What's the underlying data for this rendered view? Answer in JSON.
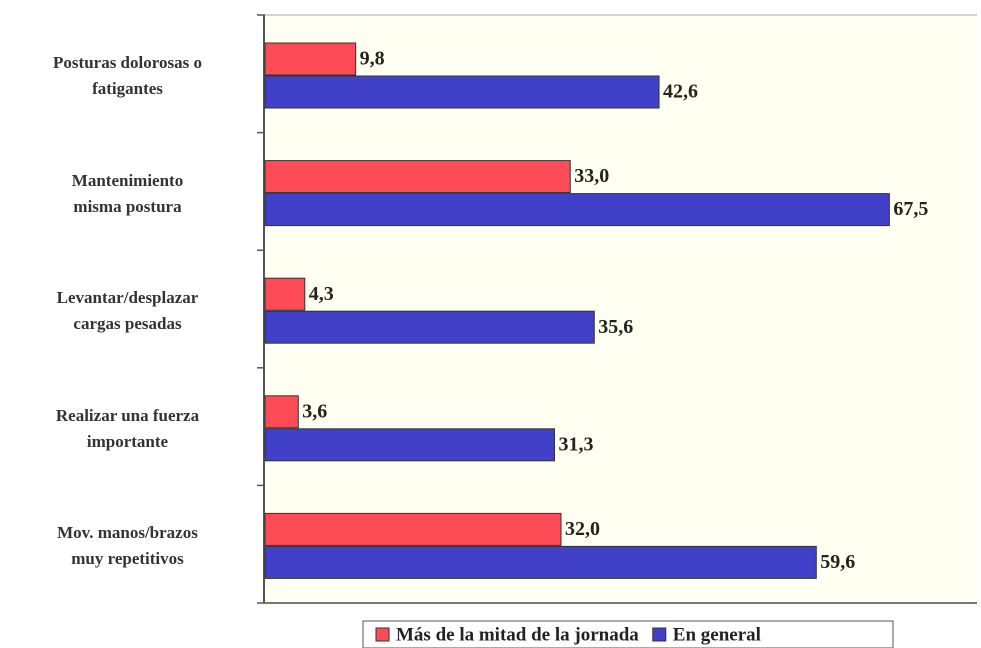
{
  "chart_data": {
    "type": "bar",
    "orientation": "horizontal",
    "categories": [
      "Posturas dolorosas o\nfatigantes",
      "Mantenimiento\nmisma postura",
      "Levantar/desplazar\ncargas pesadas",
      "Realizar una fuerza\nimportante",
      "Mov. manos/brazos\nmuy repetitivos"
    ],
    "series": [
      {
        "name": "Más de la mitad de la jornada",
        "color": "#ff4b55",
        "values": [
          9.8,
          33.0,
          4.3,
          3.6,
          32.0
        ],
        "value_labels": [
          "9,8",
          "33,0",
          "4,3",
          "3,6",
          "32,0"
        ]
      },
      {
        "name": "En general",
        "color": "#4040c8",
        "values": [
          42.6,
          67.5,
          35.6,
          31.3,
          59.6
        ],
        "value_labels": [
          "42,6",
          "67,5",
          "35,6",
          "31,3",
          "59,6"
        ]
      }
    ],
    "xlim": [
      0,
      76
    ],
    "legend": "bottom"
  }
}
